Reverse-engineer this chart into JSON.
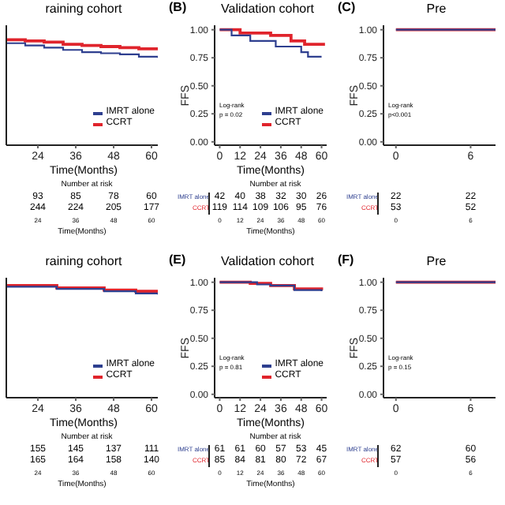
{
  "chart_data": [
    {
      "type": "step",
      "title": "raining cohort",
      "xlabel": "Time(Months)",
      "xlim": [
        14,
        62
      ],
      "xticks": [
        24,
        36,
        48,
        60
      ],
      "ylim": [
        -0.03,
        1.04
      ],
      "tick_labels": "x",
      "legend": "bottom right",
      "annotations": [
        "Number at risk",
        "93 85 78 60",
        "244 224 205 177",
        "24 36 48 60"
      ],
      "series": [
        {
          "name": "IMRT alone",
          "color": "#2e3f8f",
          "x": [
            14,
            20,
            26,
            32,
            38,
            44,
            50,
            56,
            62
          ],
          "values": [
            0.88,
            0.86,
            0.84,
            0.82,
            0.8,
            0.79,
            0.78,
            0.76,
            0.75
          ]
        },
        {
          "name": "CCRT",
          "color": "#e0242c",
          "x": [
            14,
            20,
            26,
            32,
            38,
            44,
            50,
            56,
            62
          ],
          "values": [
            0.91,
            0.9,
            0.89,
            0.87,
            0.86,
            0.85,
            0.84,
            0.83,
            0.82
          ]
        }
      ]
    },
    {
      "type": "step",
      "title": "Validation cohort",
      "xlabel": "Time(Months)",
      "ylabel": "FFS",
      "xlim": [
        -3,
        63
      ],
      "xticks": [
        0,
        12,
        24,
        36,
        48,
        60
      ],
      "ylim": [
        -0.03,
        1.04
      ],
      "yticks": [
        {
          "value": 0,
          "label": "0.00"
        },
        {
          "value": 0.25,
          "label": "0.25"
        },
        {
          "value": 0.5,
          "label": "0.50"
        },
        {
          "value": 0.75,
          "label": "0.75"
        },
        {
          "value": 1,
          "label": "1.00"
        }
      ],
      "legend": "bottom right",
      "annotations": [
        "(B)",
        "Log-rank",
        "p = 0.02",
        "Number at risk",
        "42 40 38 32 30 26",
        "119 114 109 106 95 76",
        "0 12 24 36 48 60"
      ],
      "series": [
        {
          "name": "IMRT alone",
          "color": "#2e3f8f",
          "x": [
            0,
            7,
            18,
            33,
            48,
            52,
            60
          ],
          "values": [
            1,
            0.95,
            0.9,
            0.85,
            0.8,
            0.76,
            0.76
          ]
        },
        {
          "name": "CCRT",
          "color": "#e0242c",
          "x": [
            0,
            12,
            30,
            42,
            50,
            62
          ],
          "values": [
            1,
            0.97,
            0.95,
            0.9,
            0.87,
            0.87
          ]
        }
      ]
    },
    {
      "type": "step",
      "title": "Pre",
      "ylabel": "FFS",
      "xlim": [
        -1,
        8
      ],
      "xticks": [
        0,
        6
      ],
      "ylim": [
        -0.03,
        1.04
      ],
      "yticks": [
        {
          "value": 0,
          "label": "0.00"
        },
        {
          "value": 0.25,
          "label": "0.25"
        },
        {
          "value": 0.5,
          "label": "0.50"
        },
        {
          "value": 0.75,
          "label": "0.75"
        },
        {
          "value": 1,
          "label": "1.00"
        }
      ],
      "annotations": [
        "(C)",
        "Log-rank",
        "p<0.001",
        "22 22",
        "53 52",
        "0 6"
      ],
      "series": [
        {
          "name": "IMRT alone",
          "color": "#2e3f8f",
          "x": [
            0,
            8
          ],
          "values": [
            1,
            1
          ]
        },
        {
          "name": "CCRT",
          "color": "#e0242c",
          "x": [
            0,
            8
          ],
          "values": [
            1,
            1
          ]
        }
      ]
    },
    {
      "type": "step",
      "title": "raining cohort",
      "xlabel": "Time(Months)",
      "xlim": [
        14,
        62
      ],
      "xticks": [
        24,
        36,
        48,
        60
      ],
      "ylim": [
        -0.03,
        1.04
      ],
      "tick_labels": "x",
      "legend": "bottom right",
      "annotations": [
        "Number at risk",
        "155 145 137 111",
        "165 164 158 140",
        "24 36 48 60"
      ],
      "series": [
        {
          "name": "IMRT alone",
          "color": "#2e3f8f",
          "x": [
            14,
            30,
            45,
            55,
            62
          ],
          "values": [
            0.96,
            0.94,
            0.92,
            0.9,
            0.89
          ]
        },
        {
          "name": "CCRT",
          "color": "#e0242c",
          "x": [
            14,
            30,
            45,
            55,
            62
          ],
          "values": [
            0.97,
            0.95,
            0.93,
            0.92,
            0.9
          ]
        }
      ]
    },
    {
      "type": "step",
      "title": "Validation cohort",
      "xlabel": "Time(Months)",
      "ylabel": "FFS",
      "xlim": [
        -3,
        63
      ],
      "xticks": [
        0,
        12,
        24,
        36,
        48,
        60
      ],
      "ylim": [
        -0.03,
        1.04
      ],
      "yticks": [
        {
          "value": 0,
          "label": "0.00"
        },
        {
          "value": 0.25,
          "label": "0.25"
        },
        {
          "value": 0.5,
          "label": "0.50"
        },
        {
          "value": 0.75,
          "label": "0.75"
        },
        {
          "value": 1,
          "label": "1.00"
        }
      ],
      "legend": "bottom right",
      "annotations": [
        "(E)",
        "Log-rank",
        "p = 0.81",
        "Number at risk",
        "61 61 60 57 53 45",
        "85 84 81 80 72 67",
        "0 12 24 36 48 60"
      ],
      "series": [
        {
          "name": "IMRT alone",
          "color": "#2e3f8f",
          "x": [
            0,
            22,
            30,
            44,
            60
          ],
          "values": [
            1,
            0.98,
            0.97,
            0.93,
            0.92
          ]
        },
        {
          "name": "CCRT",
          "color": "#e0242c",
          "x": [
            0,
            18,
            30,
            44,
            60
          ],
          "values": [
            1,
            0.99,
            0.97,
            0.94,
            0.93
          ]
        }
      ]
    },
    {
      "type": "step",
      "title": "Pre",
      "ylabel": "FFS",
      "xlim": [
        -1,
        8
      ],
      "xticks": [
        0,
        6
      ],
      "ylim": [
        -0.03,
        1.04
      ],
      "yticks": [
        {
          "value": 0,
          "label": "0.00"
        },
        {
          "value": 0.25,
          "label": "0.25"
        },
        {
          "value": 0.5,
          "label": "0.50"
        },
        {
          "value": 0.75,
          "label": "0.75"
        },
        {
          "value": 1,
          "label": "1.00"
        }
      ],
      "annotations": [
        "(F)",
        "Log-rank",
        "p = 0.15",
        "62 60",
        "57 56",
        "0 6"
      ],
      "series": [
        {
          "name": "IMRT alone",
          "color": "#2e3f8f",
          "x": [
            0,
            8
          ],
          "values": [
            1,
            1
          ]
        },
        {
          "name": "CCRT",
          "color": "#e0242c",
          "x": [
            0,
            8
          ],
          "values": [
            1,
            1
          ]
        }
      ]
    }
  ]
}
